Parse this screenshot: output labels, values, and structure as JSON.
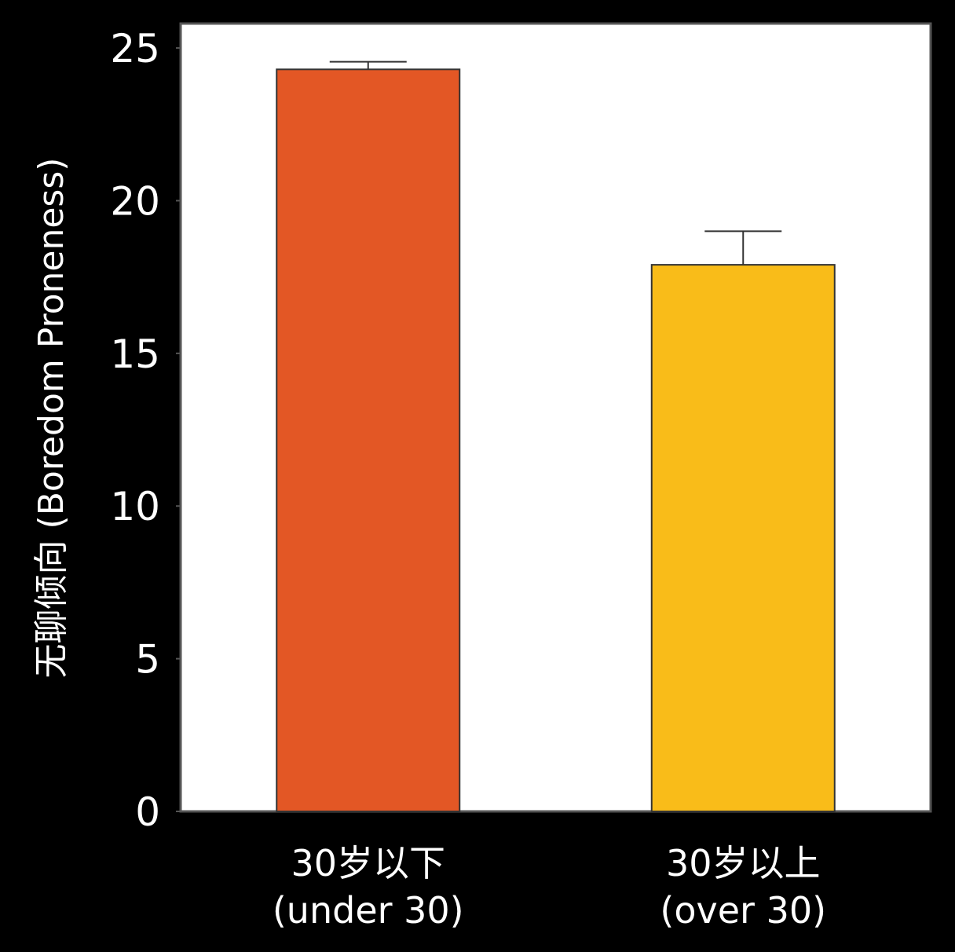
{
  "chart_data": {
    "type": "bar",
    "title": "",
    "xlabel": "",
    "ylabel": "无聊倾向 (Boredom Proneness)",
    "ylim": [
      0,
      25.8
    ],
    "yticks": [
      0,
      5,
      10,
      15,
      20,
      25
    ],
    "ytick_labels": [
      "0",
      "5",
      "10",
      "15",
      "20",
      "25"
    ],
    "categories": [
      {
        "line1": "30岁以下",
        "line2": "(under 30)"
      },
      {
        "line1": "30岁以上",
        "line2": "(over 30)"
      }
    ],
    "values": [
      24.3,
      17.9
    ],
    "errors": [
      0.25,
      1.1
    ],
    "colors": [
      "#E35725",
      "#F9BC19"
    ],
    "grid": false,
    "legend": "none"
  }
}
